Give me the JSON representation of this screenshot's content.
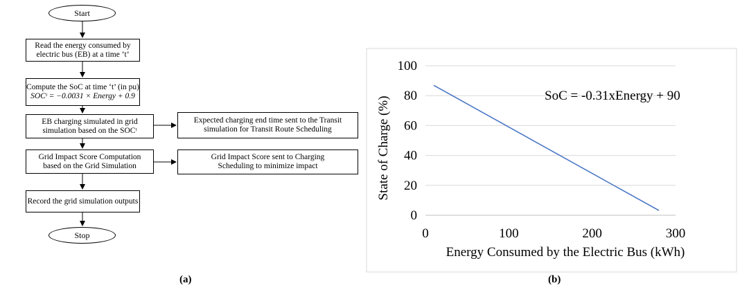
{
  "flowchart": {
    "start": "Start",
    "step1": {
      "line1": "Read the energy consumed by",
      "line2": "electric bus (EB) at a time ‘t’"
    },
    "step2": {
      "line1": "Compute the SoC at time ‘t’ (in pu)",
      "line2": "SOCᵗ = −0.0031 × Energy + 0.9"
    },
    "step3": {
      "line1": "EB charging simulated in grid",
      "line2": "simulation based on the SOCᵗ"
    },
    "step3_side": {
      "line1": "Expected charging end time sent to the Transit",
      "line2": "simulation for Transit Route Scheduling"
    },
    "step4": {
      "line1": "Grid Impact Score Computation",
      "line2": "based on the Grid Simulation"
    },
    "step4_side": {
      "line1": "Grid Impact Score sent to Charging",
      "line2": "Scheduling to minimize impact"
    },
    "step5": "Record the grid simulation outputs",
    "stop": "Stop"
  },
  "captions": {
    "a": "(a)",
    "b": "(b)"
  },
  "chart_data": {
    "type": "line",
    "title": "",
    "xlabel": "Energy Consumed by the Electric Bus (kWh)",
    "ylabel": "State of Charge (%)",
    "xlim": [
      0,
      300
    ],
    "ylim": [
      0,
      100
    ],
    "xticks": [
      "0",
      "100",
      "200",
      "300"
    ],
    "yticks": [
      "0",
      "20",
      "40",
      "60",
      "80",
      "100"
    ],
    "annotation": "SoC = -0.31xEnergy + 90",
    "grid": "horizontal",
    "series": [
      {
        "x": [
          10,
          280
        ],
        "y": [
          86.9,
          3.2
        ],
        "color": "#4472C4"
      }
    ]
  }
}
